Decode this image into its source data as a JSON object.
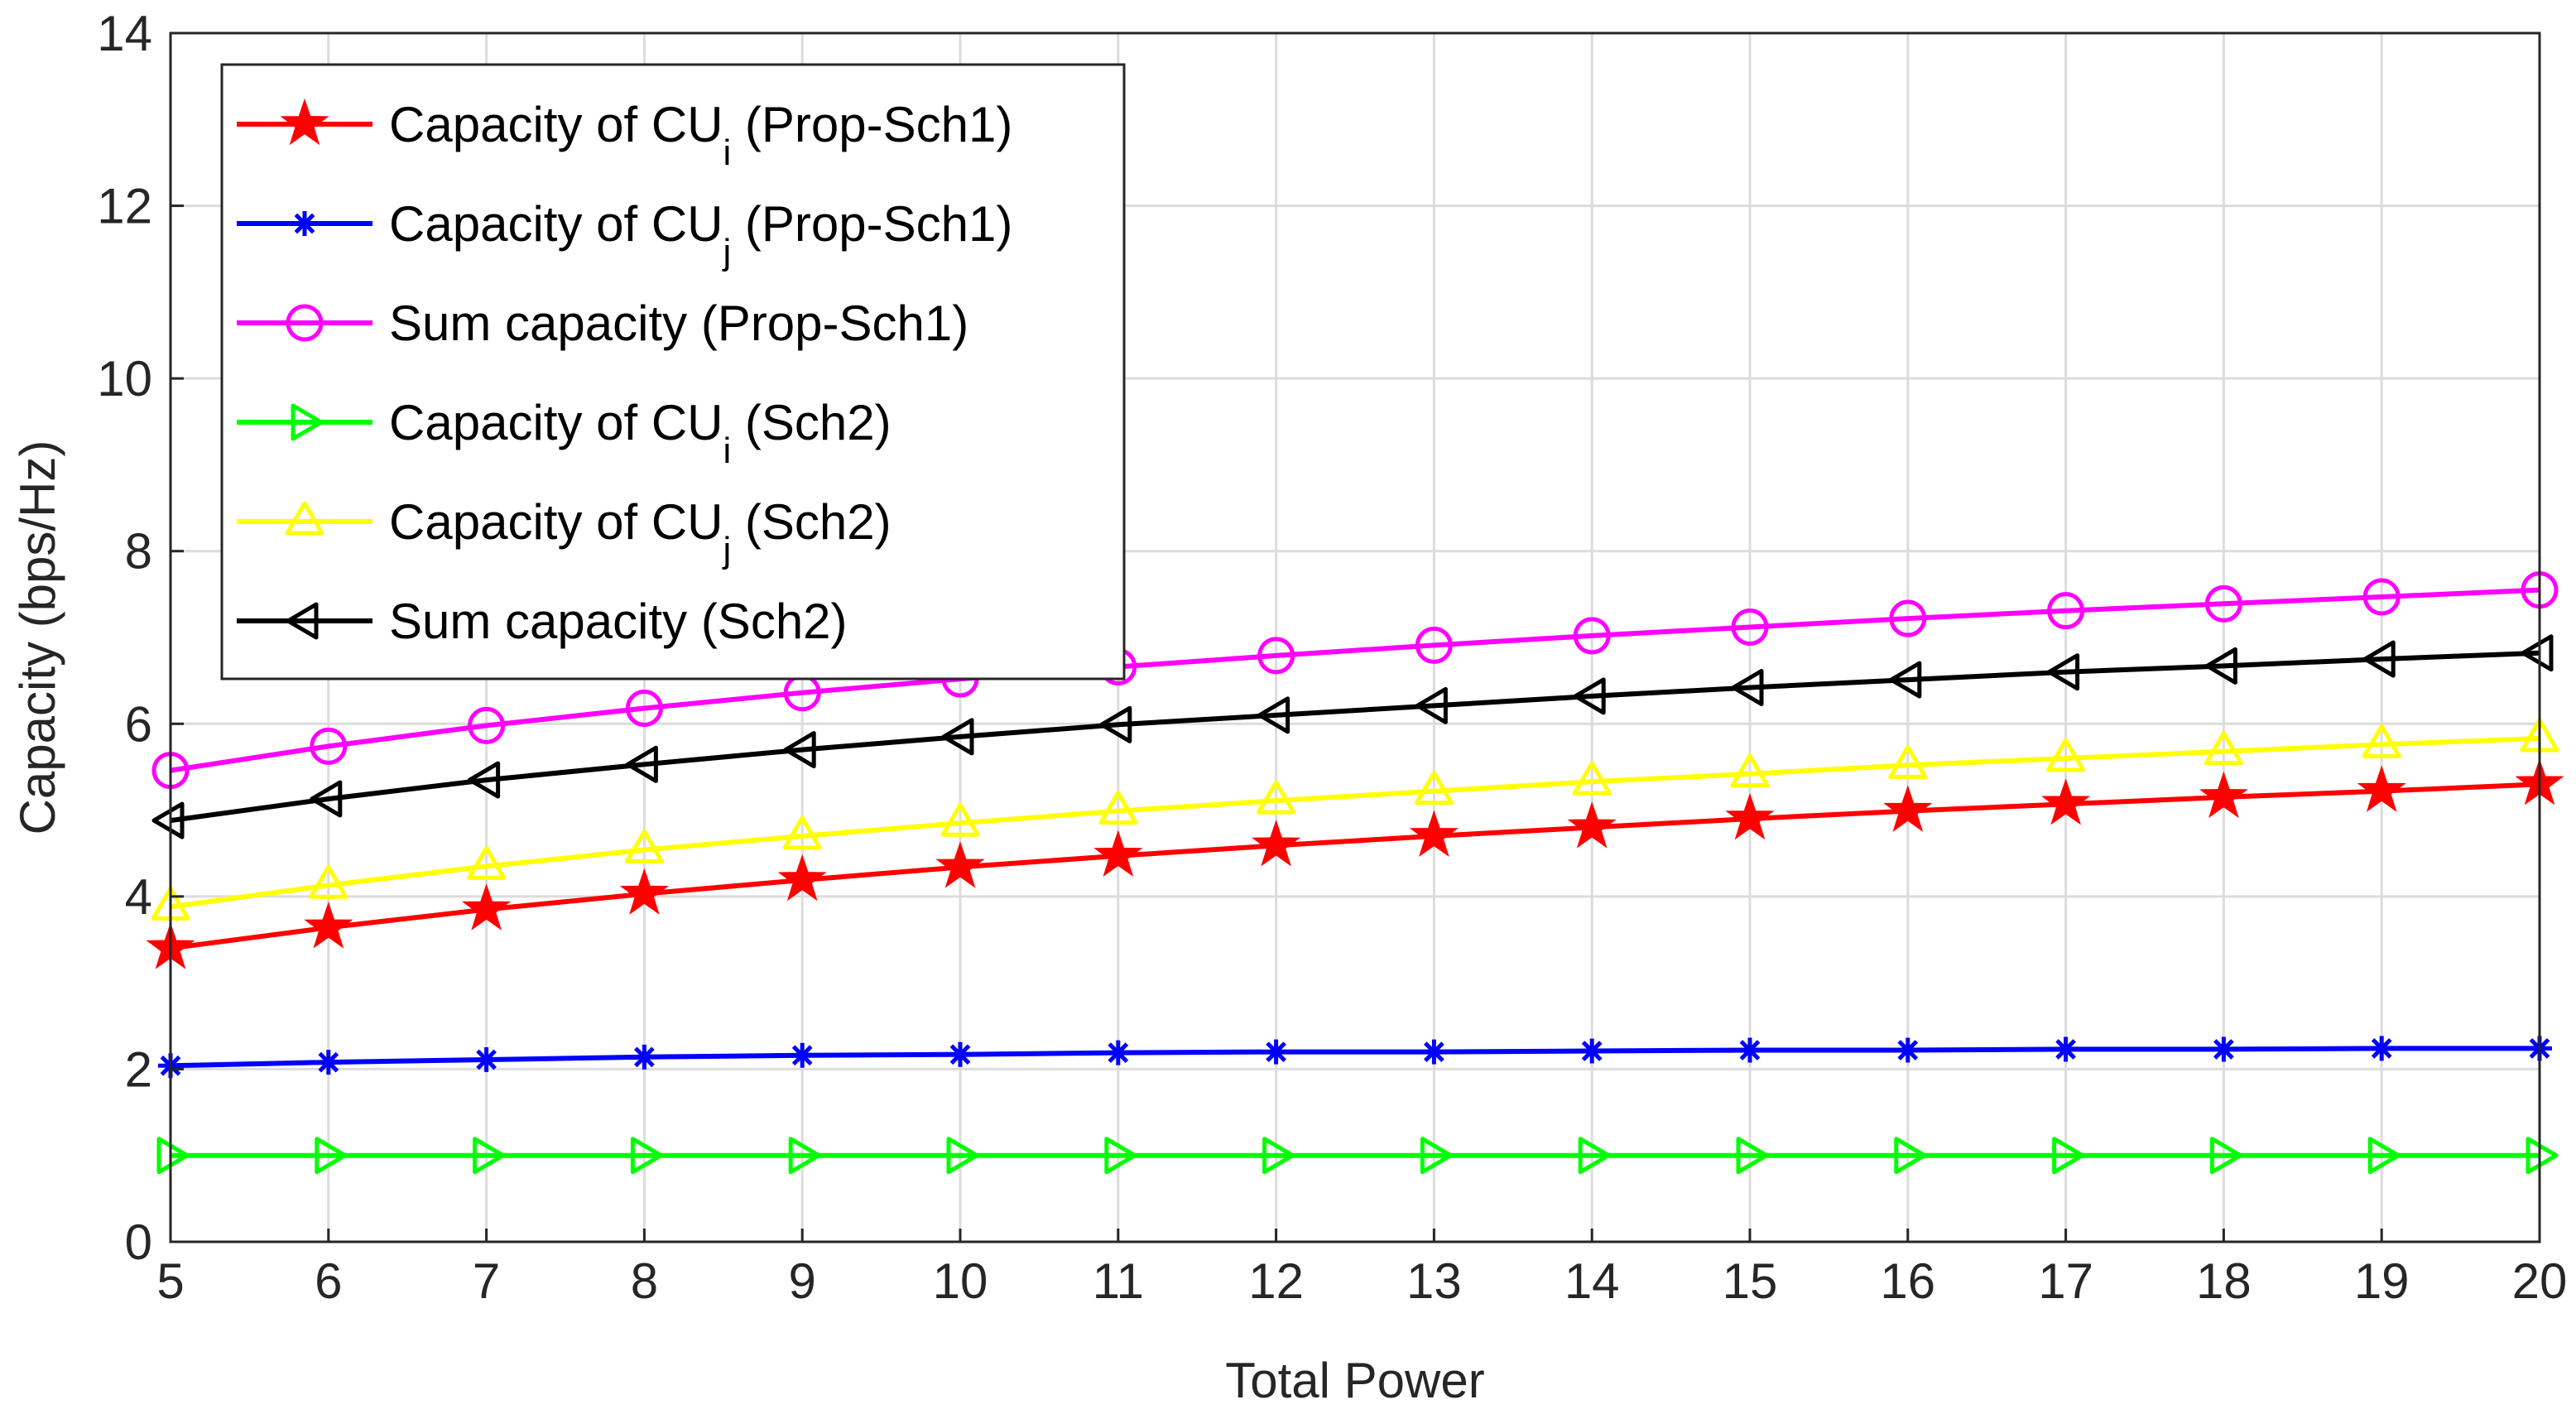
{
  "chart_data": {
    "type": "line",
    "title": "",
    "xlabel": "Total Power",
    "ylabel": "Capacity (bps/Hz)",
    "xlim": [
      5,
      20
    ],
    "ylim": [
      0,
      14
    ],
    "grid": true,
    "legend_position": "top-left",
    "x": [
      5,
      6,
      7,
      8,
      9,
      10,
      11,
      12,
      13,
      14,
      15,
      16,
      17,
      18,
      19,
      20
    ],
    "x_ticks": [
      5,
      6,
      7,
      8,
      9,
      10,
      11,
      12,
      13,
      14,
      15,
      16,
      17,
      18,
      19,
      20
    ],
    "y_ticks": [
      0,
      2,
      4,
      6,
      8,
      10,
      12,
      14
    ],
    "series": [
      {
        "name": "Capacity of CU_i (Prop-Sch1)",
        "legend_main": "Capacity of CU",
        "legend_sub": "i",
        "legend_tail": " (Prop-Sch1)",
        "color": "#ff0000",
        "marker": "star",
        "values": [
          3.4,
          3.64,
          3.85,
          4.03,
          4.19,
          4.34,
          4.47,
          4.59,
          4.7,
          4.8,
          4.9,
          4.99,
          5.07,
          5.15,
          5.22,
          5.3
        ]
      },
      {
        "name": "Capacity of CU_j (Prop-Sch1)",
        "legend_main": "Capacity of CU",
        "legend_sub": "j",
        "legend_tail": " (Prop-Sch1)",
        "color": "#0000ff",
        "marker": "asterisk",
        "values": [
          2.04,
          2.08,
          2.11,
          2.14,
          2.16,
          2.17,
          2.19,
          2.2,
          2.2,
          2.21,
          2.22,
          2.22,
          2.23,
          2.23,
          2.24,
          2.24
        ]
      },
      {
        "name": "Sum capacity (Prop-Sch1)",
        "legend_main": "Sum capacity (Prop-Sch1)",
        "legend_sub": "",
        "legend_tail": "",
        "color": "#ff00ff",
        "marker": "circle",
        "values": [
          5.46,
          5.74,
          5.98,
          6.18,
          6.36,
          6.52,
          6.66,
          6.79,
          6.91,
          7.02,
          7.12,
          7.22,
          7.31,
          7.39,
          7.47,
          7.55
        ]
      },
      {
        "name": "Capacity of CU_i (Sch2)",
        "legend_main": "Capacity of CU",
        "legend_sub": "i",
        "legend_tail": " (Sch2)",
        "color": "#00ff00",
        "marker": "triangle-right",
        "values": [
          1.0,
          1.0,
          1.0,
          1.0,
          1.0,
          1.0,
          1.0,
          1.0,
          1.0,
          1.0,
          1.0,
          1.0,
          1.0,
          1.0,
          1.0,
          1.0
        ]
      },
      {
        "name": "Capacity of CU_j (Sch2)",
        "legend_main": "Capacity of CU",
        "legend_sub": "j",
        "legend_tail": " (Sch2)",
        "color": "#ffff00",
        "marker": "triangle-up",
        "values": [
          3.88,
          4.13,
          4.35,
          4.54,
          4.7,
          4.85,
          4.99,
          5.11,
          5.22,
          5.33,
          5.42,
          5.52,
          5.6,
          5.68,
          5.76,
          5.83
        ]
      },
      {
        "name": "Sum capacity (Sch2)",
        "legend_main": "Sum capacity (Sch2)",
        "legend_sub": "",
        "legend_tail": "",
        "color": "#000000",
        "marker": "triangle-left",
        "values": [
          4.88,
          5.13,
          5.35,
          5.53,
          5.7,
          5.85,
          5.99,
          6.1,
          6.21,
          6.32,
          6.42,
          6.51,
          6.6,
          6.67,
          6.75,
          6.82
        ]
      }
    ]
  }
}
